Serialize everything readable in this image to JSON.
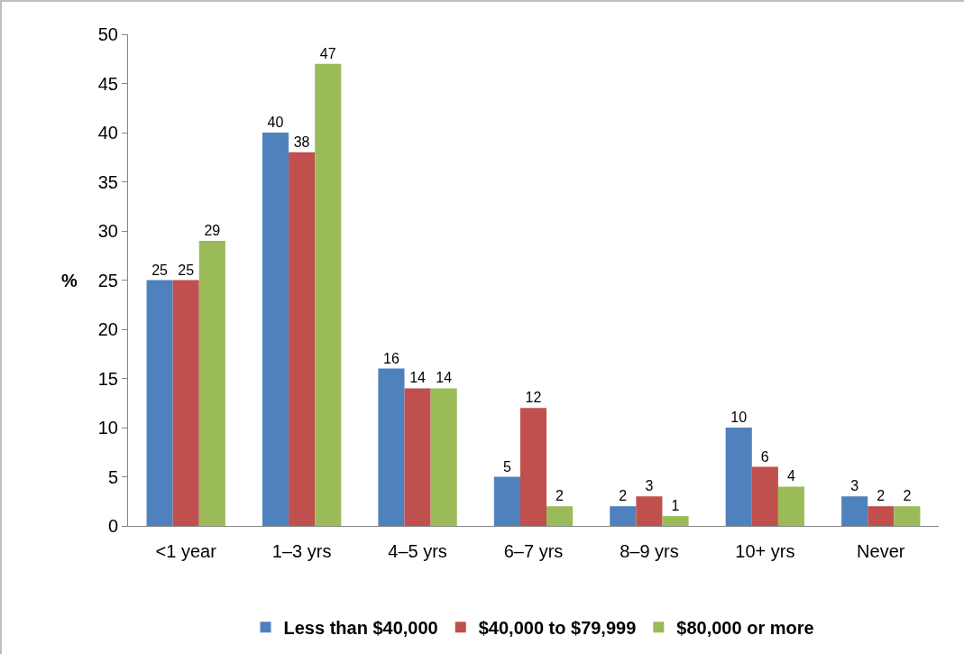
{
  "chart_data": {
    "type": "bar",
    "ylabel": "%",
    "categories": [
      "<1 year",
      "1–3 yrs",
      "4–5 yrs",
      "6–7 yrs",
      "8–9 yrs",
      "10+ yrs",
      "Never"
    ],
    "series": [
      {
        "name": "Less than $40,000",
        "color": "#4f81bd",
        "values": [
          25,
          40,
          16,
          5,
          2,
          10,
          3
        ]
      },
      {
        "name": "$40,000 to $79,999",
        "color": "#c0504d",
        "values": [
          25,
          38,
          14,
          12,
          3,
          6,
          2
        ]
      },
      {
        "name": "$80,000 or more",
        "color": "#9bbb59",
        "values": [
          29,
          47,
          14,
          2,
          1,
          4,
          2
        ]
      }
    ],
    "ylim": [
      0,
      50
    ],
    "yticks": [
      0,
      5,
      10,
      15,
      20,
      25,
      30,
      35,
      40,
      45,
      50
    ],
    "data_labels": true,
    "grid": false,
    "legend": "bottom"
  }
}
